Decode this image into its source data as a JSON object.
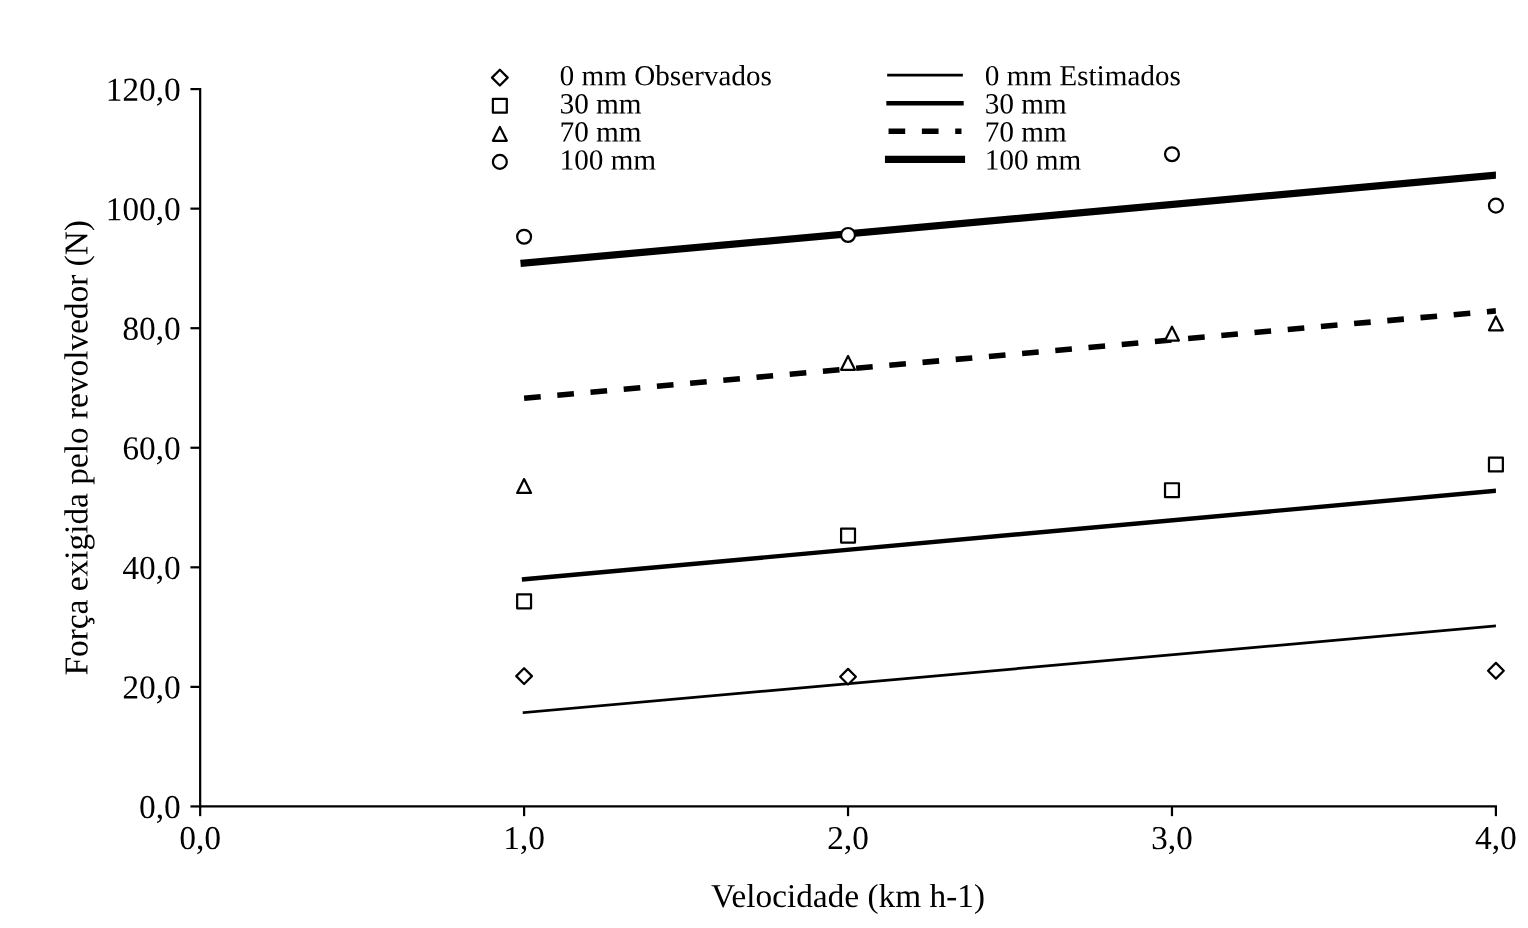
{
  "chart_data": {
    "type": "scatter",
    "xlabel": "Velocidade (km h-1)",
    "ylabel": "Força exigida pelo revolvedor (N)",
    "xlim": [
      0,
      4
    ],
    "ylim": [
      0,
      120
    ],
    "xticks": [
      {
        "value": 0,
        "label": "0,0"
      },
      {
        "value": 1,
        "label": "1,0"
      },
      {
        "value": 2,
        "label": "2,0"
      },
      {
        "value": 3,
        "label": "3,0"
      },
      {
        "value": 4,
        "label": "4,0"
      }
    ],
    "yticks": [
      {
        "value": 0,
        "label": "0,0"
      },
      {
        "value": 20,
        "label": "20,0"
      },
      {
        "value": 40,
        "label": "40,0"
      },
      {
        "value": 60,
        "label": "60,0"
      },
      {
        "value": 80,
        "label": "80,0"
      },
      {
        "value": 100,
        "label": "100,0"
      },
      {
        "value": 120,
        "label": "120,0"
      }
    ],
    "grid": false,
    "legend": "top",
    "series": [
      {
        "name": "0 mm Observados",
        "marker": "diamond",
        "color": "#000000",
        "x": [
          1,
          2,
          3,
          4
        ],
        "values": [
          21.8,
          21.7,
          null,
          22.7
        ]
      },
      {
        "name": "30 mm",
        "marker": "square",
        "color": "#000000",
        "x": [
          1,
          2,
          3,
          4
        ],
        "values": [
          34.3,
          45.3,
          52.9,
          57.2
        ]
      },
      {
        "name": "70 mm",
        "marker": "triangle",
        "color": "#000000",
        "x": [
          1,
          2,
          3,
          4
        ],
        "values": [
          53.6,
          74.2,
          79.1,
          80.8
        ]
      },
      {
        "name": "100 mm",
        "marker": "circle",
        "color": "#000000",
        "x": [
          1,
          2,
          3,
          4
        ],
        "values": [
          95.3,
          95.6,
          109.1,
          100.5
        ]
      },
      {
        "name": "0 mm Estimados",
        "type": "line",
        "line_style": "solid",
        "color": "#000000",
        "x": [
          1,
          4
        ],
        "values": [
          15.7,
          30.2
        ]
      },
      {
        "name": "30 mm",
        "type": "line",
        "line_style": "solid",
        "color": "#000000",
        "x": [
          1,
          4
        ],
        "values": [
          38.0,
          52.8
        ]
      },
      {
        "name": "70 mm",
        "type": "line",
        "line_style": "dashed",
        "color": "#000000",
        "x": [
          1,
          4
        ],
        "values": [
          68.3,
          82.9
        ]
      },
      {
        "name": "100 mm",
        "type": "line",
        "line_style": "solid",
        "color": "#000000",
        "x": [
          1,
          4
        ],
        "values": [
          90.9,
          105.6
        ]
      }
    ]
  }
}
